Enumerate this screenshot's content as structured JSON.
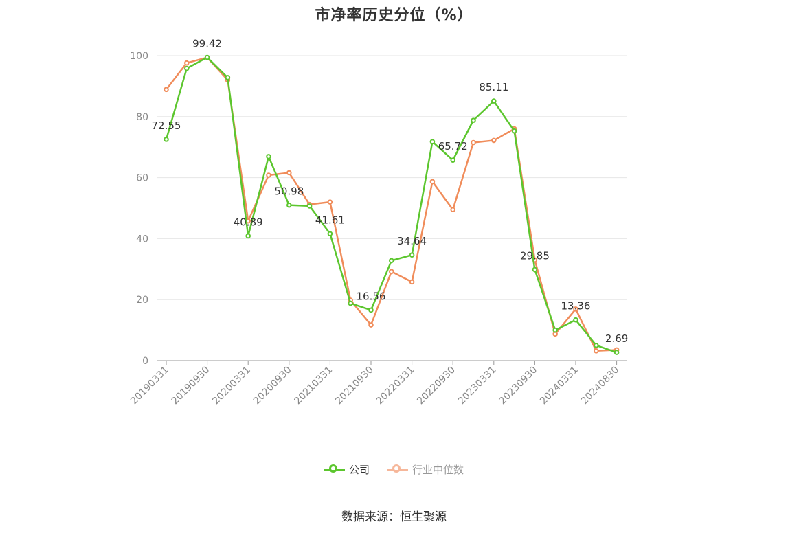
{
  "chart_data": {
    "type": "line",
    "title": "市净率历史分位（%）",
    "x": [
      "20190331",
      "20190630",
      "20190930",
      "20191231",
      "20200331",
      "20200630",
      "20200930",
      "20201231",
      "20210331",
      "20210630",
      "20210930",
      "20211231",
      "20220331",
      "20220630",
      "20220930",
      "20221231",
      "20230331",
      "20230630",
      "20230930",
      "20231231",
      "20240331",
      "20240630",
      "20240830"
    ],
    "x_tick_labels": [
      "20190331",
      "20190930",
      "20200331",
      "20200930",
      "20210331",
      "20210930",
      "20220331",
      "20220930",
      "20230331",
      "20230930",
      "20240331",
      "20240830"
    ],
    "ylim": [
      0,
      100
    ],
    "y_ticks": [
      0,
      20,
      40,
      60,
      80,
      100
    ],
    "grid": true,
    "legend_position": "bottom",
    "series": [
      {
        "name": "公司",
        "color": "#5cc62e",
        "values": [
          72.55,
          95.8,
          99.42,
          92.8,
          40.89,
          66.9,
          50.98,
          50.7,
          41.61,
          18.8,
          16.56,
          32.8,
          34.64,
          71.8,
          65.72,
          78.8,
          85.11,
          75.3,
          29.85,
          10.0,
          13.36,
          5.0,
          2.69
        ]
      },
      {
        "name": "行业中位数",
        "color": "#f08c5a",
        "values": [
          88.9,
          97.6,
          99.4,
          92.0,
          45.8,
          60.8,
          61.6,
          51.2,
          52.0,
          19.8,
          11.7,
          29.2,
          25.8,
          58.7,
          49.5,
          71.5,
          72.2,
          76.0,
          33.0,
          8.7,
          16.9,
          3.2,
          3.5
        ]
      }
    ],
    "data_labels": [
      {
        "x": "20190331",
        "value": "72.55"
      },
      {
        "x": "20190930",
        "value": "99.42"
      },
      {
        "x": "20200331",
        "value": "40.89"
      },
      {
        "x": "20200930",
        "value": "50.98"
      },
      {
        "x": "20210331",
        "value": "41.61"
      },
      {
        "x": "20210930",
        "value": "16.56"
      },
      {
        "x": "20220331",
        "value": "34.64"
      },
      {
        "x": "20220930",
        "value": "65.72"
      },
      {
        "x": "20230331",
        "value": "85.11"
      },
      {
        "x": "20230930",
        "value": "29.85"
      },
      {
        "x": "20240331",
        "value": "13.36"
      },
      {
        "x": "20240830",
        "value": "2.69"
      }
    ]
  },
  "legend": {
    "company_label": "公司",
    "industry_label": "行业中位数",
    "company_color": "#5cc62e",
    "industry_color": "#f08c5a"
  },
  "source": "数据来源：恒生聚源"
}
